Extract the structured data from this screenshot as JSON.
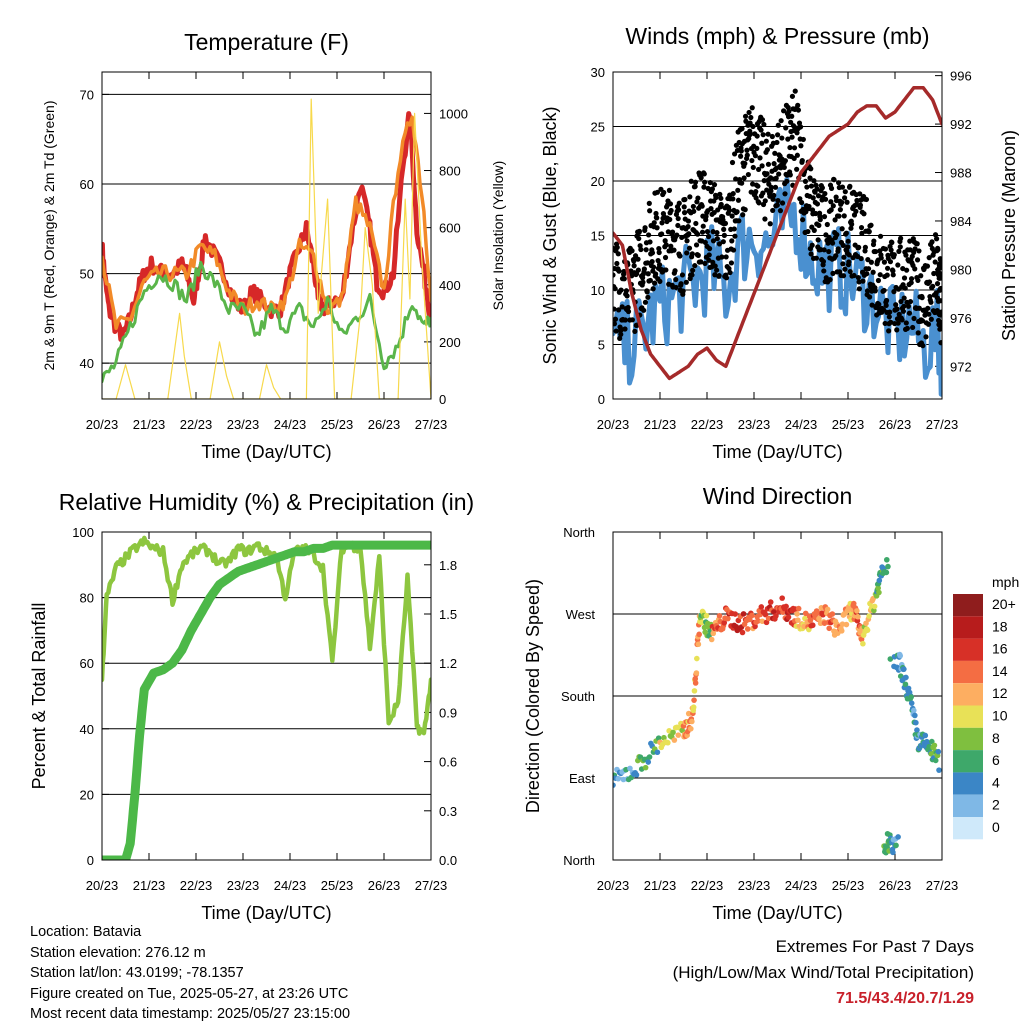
{
  "chart_data": [
    {
      "type": "line",
      "title": "Temperature (F)",
      "xlabel": "Time (Day/UTC)",
      "ylabel": "2m & 9m T (Red, Orange) & 2m Td (Green)",
      "y2label": "Solar Insolation (Yellow)",
      "x_ticks": [
        "20/23",
        "21/23",
        "22/23",
        "23/23",
        "24/23",
        "25/23",
        "26/23",
        "27/23"
      ],
      "xlim": [
        0,
        7
      ],
      "ylim": [
        36,
        72.5
      ],
      "y_ticks": [
        40,
        50,
        60,
        70
      ],
      "y2lim": [
        0,
        1145
      ],
      "y2_ticks": [
        0,
        200,
        400,
        600,
        800,
        1000
      ],
      "grid": "horizontal",
      "series": [
        {
          "color": "#d62828",
          "axis": "left",
          "x": [
            0,
            0.05,
            0.15,
            0.3,
            0.45,
            0.6,
            0.75,
            0.9,
            1.05,
            1.3,
            1.5,
            1.7,
            1.8,
            1.95,
            2.05,
            2.2,
            2.4,
            2.6,
            2.8,
            3.0,
            3.2,
            3.4,
            3.6,
            3.8,
            4.0,
            4.2,
            4.35,
            4.5,
            4.6,
            4.75,
            4.9,
            5.1,
            5.3,
            5.5,
            5.7,
            5.85,
            6.0,
            6.2,
            6.4,
            6.55,
            6.7,
            6.85,
            7.0
          ],
          "y": [
            53,
            50,
            46,
            44,
            43,
            45,
            48,
            50,
            51,
            50,
            50,
            51,
            50,
            47,
            50,
            54,
            52,
            50,
            47,
            46,
            48,
            47,
            46,
            46,
            50,
            53,
            55,
            51,
            47,
            46,
            47,
            47,
            54,
            60,
            55,
            49,
            48,
            50,
            62,
            68,
            55,
            50,
            45
          ]
        },
        {
          "color": "#f28a28",
          "axis": "left",
          "x": [
            0,
            0.3,
            0.6,
            0.9,
            1.2,
            1.5,
            1.8,
            2.1,
            2.4,
            2.7,
            3.0,
            3.3,
            3.6,
            3.9,
            4.2,
            4.5,
            4.8,
            5.1,
            5.4,
            5.7,
            6.0,
            6.3,
            6.6,
            6.85,
            7.0
          ],
          "y": [
            52,
            44,
            45,
            49,
            50,
            50,
            50,
            53,
            52,
            48,
            46,
            47,
            46,
            47,
            53,
            52,
            46,
            47,
            58,
            55,
            48,
            62,
            68,
            57,
            47
          ]
        },
        {
          "color": "#5ab54a",
          "axis": "left",
          "x": [
            0,
            0.3,
            0.6,
            0.9,
            1.2,
            1.5,
            1.8,
            2.1,
            2.4,
            2.7,
            3.0,
            3.3,
            3.6,
            3.9,
            4.2,
            4.5,
            4.8,
            5.1,
            5.4,
            5.7,
            6.0,
            6.3,
            6.6,
            6.85,
            7.0
          ],
          "y": [
            38,
            40,
            44,
            48,
            50,
            49,
            47,
            51,
            49,
            46,
            46,
            43,
            46,
            44,
            46,
            44,
            47,
            43,
            45,
            47,
            40,
            42,
            47,
            44,
            45
          ]
        },
        {
          "color": "#f7d94c",
          "axis": "right",
          "x": [
            0,
            0.3,
            0.5,
            0.7,
            1.0,
            1.4,
            1.65,
            1.75,
            1.9,
            2.3,
            2.5,
            2.65,
            2.8,
            2.9,
            3.0,
            3.35,
            3.5,
            3.65,
            3.8,
            4.0,
            4.35,
            4.45,
            4.6,
            4.8,
            4.95,
            5.3,
            5.5,
            5.6,
            5.75,
            5.9,
            6.3,
            6.45,
            6.55,
            6.65,
            6.8,
            7.0
          ],
          "y": [
            0,
            0,
            120,
            0,
            0,
            0,
            300,
            150,
            0,
            0,
            200,
            80,
            0,
            0,
            0,
            0,
            120,
            40,
            0,
            0,
            0,
            1050,
            300,
            700,
            0,
            0,
            300,
            600,
            400,
            0,
            0,
            700,
            350,
            1000,
            500,
            0
          ]
        }
      ]
    },
    {
      "type": "line",
      "title": "Winds (mph) & Pressure (mb)",
      "xlabel": "Time (Day/UTC)",
      "ylabel": "Sonic Wind & Gust (Blue, Black)",
      "y2label": "Station Pressure (Maroon)",
      "x_ticks": [
        "20/23",
        "21/23",
        "22/23",
        "23/23",
        "24/23",
        "25/23",
        "26/23",
        "27/23"
      ],
      "xlim": [
        0,
        7
      ],
      "ylim": [
        0,
        30
      ],
      "y_ticks": [
        0,
        5,
        10,
        15,
        20,
        25,
        30
      ],
      "y2lim": [
        969.3,
        996.3
      ],
      "y2_ticks": [
        972,
        976,
        980,
        984,
        988,
        992,
        996
      ],
      "grid": "horizontal",
      "series": [
        {
          "color": "#4a90d0",
          "axis": "left",
          "name": "",
          "x": [
            0,
            0.3,
            0.6,
            0.9,
            1.2,
            1.5,
            1.8,
            2.1,
            2.4,
            2.7,
            3.0,
            3.3,
            3.6,
            3.9,
            4.2,
            4.5,
            4.8,
            5.1,
            5.4,
            5.7,
            6.0,
            6.3,
            6.6,
            6.9,
            7.0
          ],
          "y": [
            5,
            5,
            6,
            8,
            9,
            10,
            11,
            12,
            10,
            14,
            15,
            14,
            16,
            17,
            13,
            12,
            12,
            11,
            10,
            8,
            6,
            7,
            5,
            6,
            4
          ]
        },
        {
          "color": "#000000",
          "axis": "left",
          "style": "dots",
          "x": [
            0,
            0.3,
            0.6,
            0.9,
            1.2,
            1.5,
            1.8,
            2.1,
            2.4,
            2.7,
            3.0,
            3.3,
            3.6,
            3.9,
            4.2,
            4.5,
            4.8,
            5.1,
            5.4,
            5.7,
            6.0,
            6.3,
            6.6,
            6.9,
            7.0
          ],
          "y": [
            11,
            9,
            12,
            15,
            15,
            14,
            17,
            16,
            14,
            21,
            23,
            20,
            22,
            24,
            17,
            15,
            16,
            15,
            14,
            11,
            10,
            11,
            9,
            11,
            8
          ]
        },
        {
          "color": "#a52a2a",
          "axis": "right",
          "x": [
            0,
            0.2,
            0.4,
            0.6,
            0.8,
            1.0,
            1.2,
            1.4,
            1.6,
            1.8,
            2.0,
            2.2,
            2.4,
            2.6,
            2.8,
            3.0,
            3.2,
            3.4,
            3.6,
            3.8,
            4.0,
            4.2,
            4.4,
            4.6,
            4.8,
            5.0,
            5.2,
            5.4,
            5.6,
            5.8,
            6.0,
            6.2,
            6.4,
            6.6,
            6.8,
            7.0
          ],
          "y": [
            983,
            982,
            978,
            975,
            973,
            972,
            971,
            971.5,
            972,
            973,
            973.5,
            972.5,
            972,
            974,
            976,
            978,
            980,
            982,
            984,
            986,
            988,
            989,
            990,
            991,
            991.5,
            992,
            993,
            993.5,
            993.5,
            992.5,
            993,
            994,
            995,
            995,
            994,
            992
          ]
        }
      ]
    },
    {
      "type": "line",
      "title": "Relative Humidity (%) & Precipitation (in)",
      "xlabel": "Time (Day/UTC)",
      "ylabel": "Percent & Total Rainfall",
      "x_ticks": [
        "20/23",
        "21/23",
        "22/23",
        "23/23",
        "24/23",
        "25/23",
        "26/23",
        "27/23"
      ],
      "xlim": [
        0,
        7
      ],
      "ylim": [
        0,
        100
      ],
      "y_ticks": [
        0,
        20,
        40,
        60,
        80,
        100
      ],
      "y2lim": [
        0,
        2.0
      ],
      "y2_ticks": [
        "0.0",
        "0.3",
        "0.6",
        "0.9",
        "1.2",
        "1.5",
        "1.8"
      ],
      "grid": "horizontal",
      "series": [
        {
          "color": "#8dc63f",
          "axis": "left",
          "x": [
            0,
            0.1,
            0.3,
            0.5,
            0.7,
            0.9,
            1.1,
            1.3,
            1.5,
            1.7,
            1.9,
            2.1,
            2.3,
            2.5,
            2.7,
            2.9,
            3.1,
            3.3,
            3.5,
            3.7,
            3.9,
            4.1,
            4.3,
            4.5,
            4.7,
            4.9,
            5.1,
            5.3,
            5.5,
            5.7,
            5.9,
            6.1,
            6.3,
            6.5,
            6.7,
            6.85,
            7.0
          ],
          "y": [
            56,
            80,
            89,
            92,
            95,
            97,
            95,
            94,
            79,
            90,
            93,
            95,
            94,
            90,
            91,
            95,
            94,
            96,
            94,
            93,
            80,
            94,
            95,
            93,
            89,
            60,
            95,
            96,
            95,
            65,
            92,
            42,
            48,
            86,
            41,
            38,
            55
          ]
        },
        {
          "color": "#4cb848",
          "axis": "left",
          "name": "",
          "x": [
            0,
            0.5,
            0.6,
            0.7,
            0.8,
            0.9,
            1.1,
            1.3,
            1.5,
            1.7,
            1.9,
            2.1,
            2.3,
            2.5,
            2.7,
            2.9,
            3.1,
            3.3,
            3.5,
            3.7,
            3.9,
            4.1,
            4.3,
            4.5,
            4.7,
            4.9,
            5.1,
            5.5,
            6.0,
            6.5,
            7.0
          ],
          "y": [
            0,
            0,
            5,
            20,
            38,
            52,
            57,
            58,
            60,
            64,
            70,
            75,
            80,
            84,
            86,
            88,
            89,
            90,
            91,
            92,
            93,
            94,
            94,
            95,
            95,
            96,
            96,
            96,
            96,
            96,
            96
          ]
        }
      ]
    },
    {
      "type": "scatter",
      "title": "Wind Direction",
      "xlabel": "Time (Day/UTC)",
      "ylabel": "Direction (Colored By Speed)",
      "x_ticks": [
        "20/23",
        "21/23",
        "22/23",
        "23/23",
        "24/23",
        "25/23",
        "26/23",
        "27/23"
      ],
      "xlim": [
        0,
        7
      ],
      "y_ticks": [
        "North",
        "East",
        "South",
        "West",
        "North"
      ],
      "grid": "horizontal",
      "colorbar": {
        "title": "mph",
        "labels": [
          "20+",
          "18",
          "16",
          "14",
          "12",
          "10",
          "8",
          "6",
          "4",
          "2",
          "0"
        ],
        "colors": [
          "#8f1d1d",
          "#b71c1c",
          "#d73027",
          "#f46d43",
          "#fdae61",
          "#e8e157",
          "#7fbf3f",
          "#3ea86a",
          "#3b86c6",
          "#7fb8e6",
          "#cfe9fa"
        ]
      }
    }
  ],
  "footer": {
    "location": "Location: Batavia",
    "elevation": "Station elevation: 276.12 m",
    "latlon": "Station lat/lon: 43.0199; -78.1357",
    "created": "Figure created on Tue, 2025-05-27, at 23:26 UTC",
    "recent": "Most recent data timestamp: 2025/05/27 23:15:00"
  },
  "extremes": {
    "title": "Extremes For Past 7 Days",
    "subtitle": "(High/Low/Max Wind/Total Precipitation)",
    "value": "71.5/43.4/20.7/1.29"
  }
}
